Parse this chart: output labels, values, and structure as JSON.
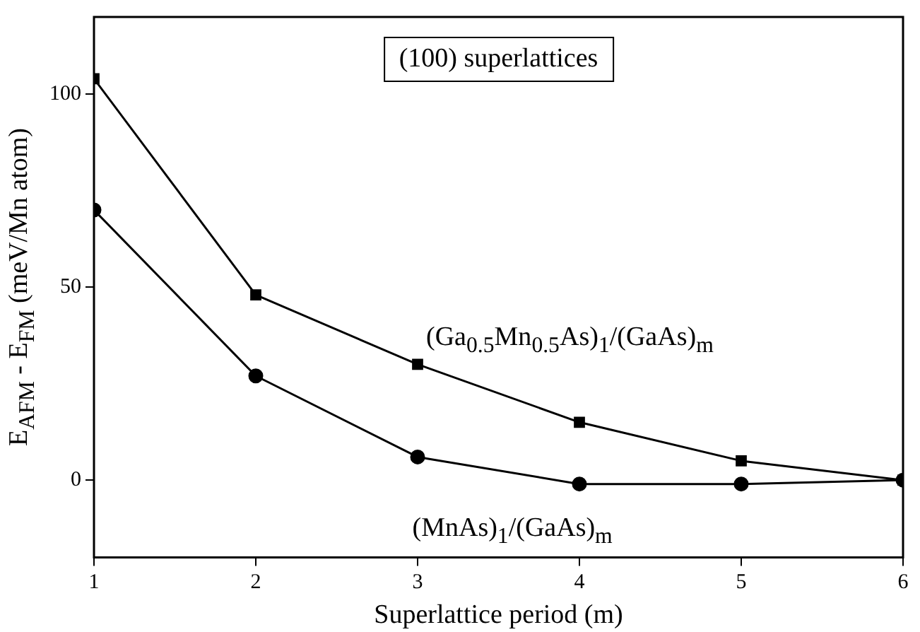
{
  "chart_data": {
    "type": "line",
    "xlabel": "Superlattice period (m)",
    "ylabel": "E$_{AFM}$ - E$_{FM}$ (meV/Mn atom)",
    "annotations": [
      "(100) superlattices"
    ],
    "x": [
      1,
      2,
      3,
      4,
      5,
      6
    ],
    "series": [
      {
        "name": "(Ga$_{0.5}$Mn$_{0.5}$As)$_{1}$/(GaAs)$_{m}$",
        "color": "#000000",
        "marker": "square",
        "values": [
          104,
          48,
          30,
          15,
          5,
          0
        ]
      },
      {
        "name": "(MnAs)$_{1}$/(GaAs)$_{m}$",
        "color": "#000000",
        "marker": "circle",
        "values": [
          70,
          27,
          6,
          -1,
          -1,
          0
        ]
      }
    ],
    "xlim": [
      1,
      6
    ],
    "xticks": [
      1,
      2,
      3,
      4,
      5,
      6
    ],
    "ylim": [
      -20,
      120
    ],
    "yticks": [
      0,
      50,
      100
    ],
    "grid": false,
    "legend": false,
    "line_style": "solid"
  }
}
